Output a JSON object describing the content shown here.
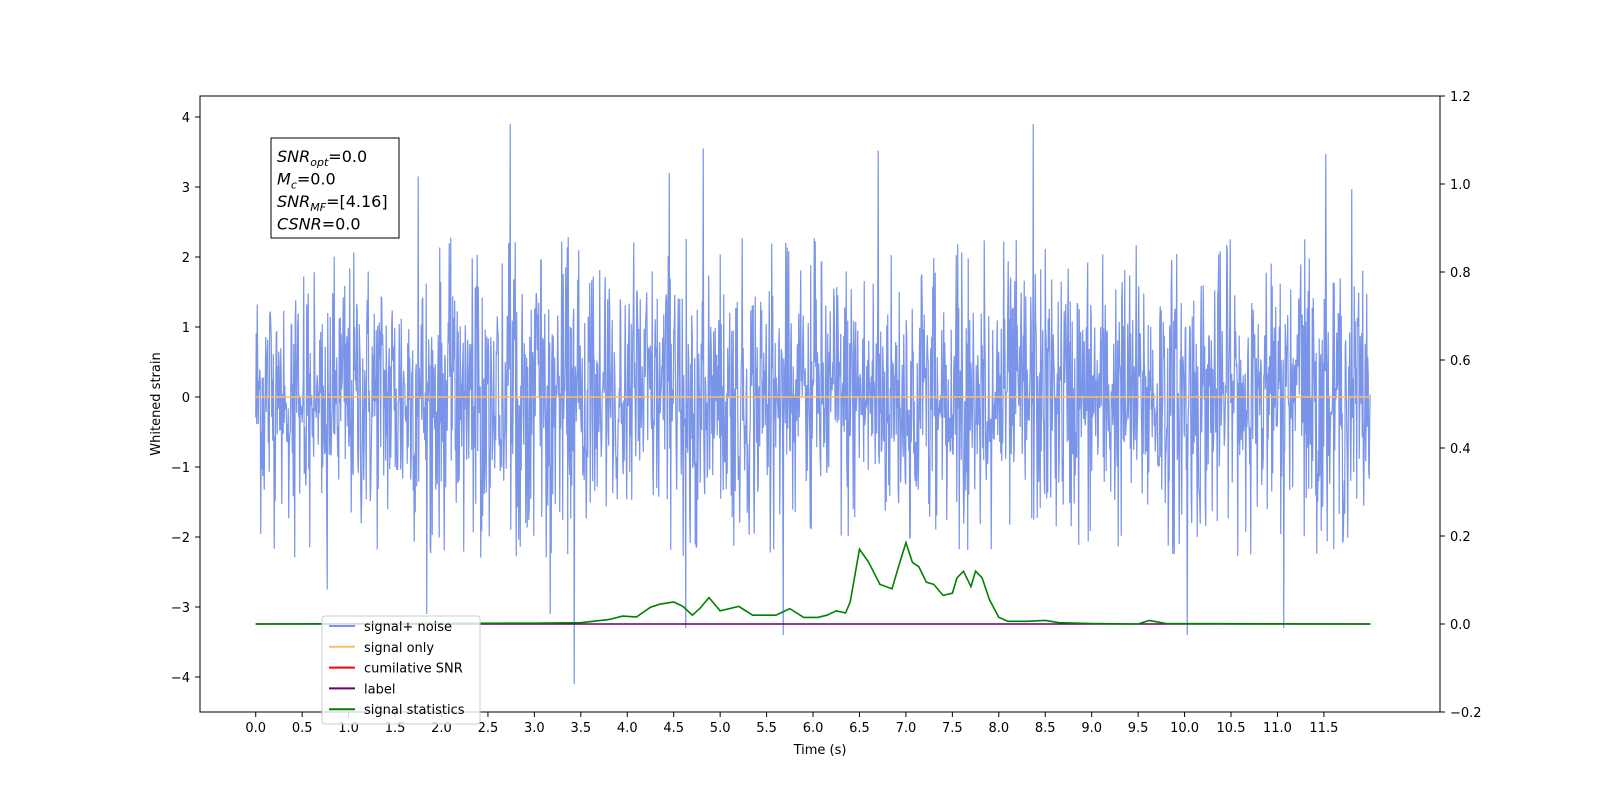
{
  "chart_data": {
    "type": "line",
    "xlabel": "Time (s)",
    "ylabel": "Whitened strain",
    "xlim": [
      -0.6,
      12.75
    ],
    "ylim": [
      -4.5,
      4.3
    ],
    "y2lim": [
      -0.2,
      1.2
    ],
    "x_ticks": [
      "0.0",
      "0.5",
      "1.0",
      "1.5",
      "2.0",
      "2.5",
      "3.0",
      "3.5",
      "4.0",
      "4.5",
      "5.0",
      "5.5",
      "6.0",
      "6.5",
      "7.0",
      "7.5",
      "8.0",
      "8.5",
      "9.0",
      "9.5",
      "10.0",
      "10.5",
      "11.0",
      "11.5"
    ],
    "y_ticks": [
      "4",
      "3",
      "2",
      "1",
      "0",
      "−1",
      "−2",
      "−3",
      "−4"
    ],
    "y2_ticks": [
      "1.2",
      "1.0",
      "0.8",
      "0.6",
      "0.4",
      "0.2",
      "0.0",
      "−0.2"
    ],
    "grid": false,
    "legend_position": "lower-left",
    "annotation": {
      "lines": [
        {
          "base": "SNR",
          "sub": "opt",
          "rest": "=0.0"
        },
        {
          "base": "M",
          "sub": "c",
          "rest": "=0.0"
        },
        {
          "base": "SNR",
          "sub": "MF",
          "rest": "=[4.16]"
        },
        {
          "base": "CSNR",
          "sub": "",
          "rest": "=0.0"
        }
      ]
    },
    "series": [
      {
        "name": "signal+ noise",
        "color": "#7994e8",
        "axis": "left",
        "kind": "noise",
        "x_range": [
          0.0,
          12.0
        ],
        "typical_max": 2.3,
        "typical_min": -2.3,
        "spikes": [
          {
            "x": 2.74,
            "y": 3.9
          },
          {
            "x": 8.37,
            "y": 3.9
          },
          {
            "x": 4.82,
            "y": 3.55
          },
          {
            "x": 6.7,
            "y": 3.52
          },
          {
            "x": 11.52,
            "y": 3.47
          },
          {
            "x": 1.75,
            "y": 3.15
          },
          {
            "x": 11.8,
            "y": 2.97
          },
          {
            "x": 4.45,
            "y": 3.2
          },
          {
            "x": 3.43,
            "y": -4.1
          },
          {
            "x": 10.03,
            "y": -3.4
          },
          {
            "x": 5.68,
            "y": -3.4
          },
          {
            "x": 11.07,
            "y": -3.3
          },
          {
            "x": 1.84,
            "y": -3.1
          },
          {
            "x": 3.17,
            "y": -3.1
          },
          {
            "x": 4.63,
            "y": -3.3
          },
          {
            "x": 0.77,
            "y": -2.75
          }
        ]
      },
      {
        "name": "signal only",
        "color": "#ffbb66",
        "axis": "left",
        "x": [
          0.0,
          12.0
        ],
        "y": [
          0.0,
          0.0
        ]
      },
      {
        "name": "cumilative SNR",
        "color": "#ff0000",
        "axis": "right",
        "x": [],
        "y": []
      },
      {
        "name": "label",
        "color": "#6a006a",
        "axis": "right",
        "x": [
          0.0,
          12.0
        ],
        "y": [
          0.0,
          0.0
        ]
      },
      {
        "name": "signal statistics",
        "color": "#008000",
        "axis": "right",
        "x": [
          0.0,
          3.0,
          3.5,
          3.8,
          3.95,
          4.1,
          4.25,
          4.35,
          4.5,
          4.6,
          4.7,
          4.78,
          4.88,
          5.0,
          5.1,
          5.2,
          5.35,
          5.6,
          5.75,
          5.9,
          6.05,
          6.15,
          6.25,
          6.35,
          6.4,
          6.5,
          6.6,
          6.72,
          6.85,
          6.92,
          7.0,
          7.07,
          7.14,
          7.22,
          7.3,
          7.4,
          7.5,
          7.55,
          7.62,
          7.7,
          7.75,
          7.82,
          7.9,
          8.0,
          8.1,
          8.3,
          8.5,
          8.65,
          9.0,
          9.5,
          9.62,
          9.8,
          12.0
        ],
        "y": [
          0.0,
          0.002,
          0.003,
          0.01,
          0.018,
          0.016,
          0.038,
          0.045,
          0.05,
          0.04,
          0.02,
          0.035,
          0.06,
          0.03,
          0.035,
          0.04,
          0.02,
          0.02,
          0.035,
          0.015,
          0.015,
          0.02,
          0.03,
          0.025,
          0.05,
          0.17,
          0.14,
          0.09,
          0.08,
          0.13,
          0.185,
          0.14,
          0.13,
          0.095,
          0.09,
          0.065,
          0.07,
          0.105,
          0.12,
          0.085,
          0.12,
          0.105,
          0.055,
          0.015,
          0.006,
          0.006,
          0.008,
          0.003,
          0.001,
          0.0,
          0.008,
          0.001,
          0.0
        ]
      }
    ]
  }
}
